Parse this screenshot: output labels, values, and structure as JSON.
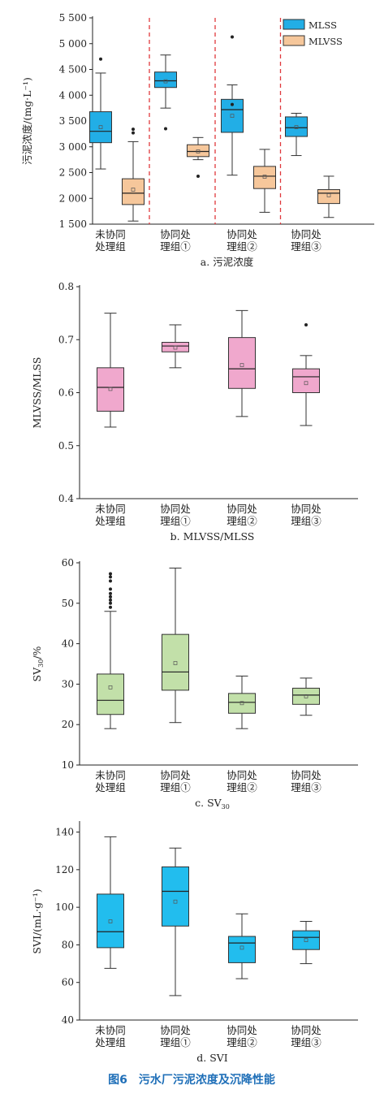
{
  "figure_caption": "图6　污水厂污泥浓度及沉降性能",
  "colors": {
    "mlss": "#22aee6",
    "mlvss": "#f6c79b",
    "ratio": "#f0a8cd",
    "sv30": "#c2e0a9",
    "svi": "#22bdee",
    "divider": "#e0383c",
    "caption": "#1f6fb8"
  },
  "chart_data": [
    {
      "type": "box",
      "id": "a",
      "subtitle": "a. 污泥浓度",
      "ylabel": "污泥浓度/(mg·L⁻¹)",
      "ylim": [
        1500,
        5500
      ],
      "yticks": [
        1500,
        2000,
        2500,
        3000,
        3500,
        4000,
        4500,
        5000,
        5500
      ],
      "ytick_labels": [
        "1 500",
        "2 000",
        "2 500",
        "3 000",
        "3 500",
        "4 000",
        "4 500",
        "5 000",
        "5 500"
      ],
      "categories": [
        [
          "未协同",
          "处理组"
        ],
        [
          "协同处",
          "理组①"
        ],
        [
          "协同处",
          "理组②"
        ],
        [
          "协同处",
          "理组③"
        ]
      ],
      "group_dividers": true,
      "legend_position": "top-right",
      "series": [
        {
          "name": "MLSS",
          "boxes": [
            {
              "min": 2570,
              "q1": 3080,
              "median": 3300,
              "q3": 3680,
              "max": 4430,
              "mean": 3380,
              "outliers": [
                4700
              ]
            },
            {
              "min": 3750,
              "q1": 4150,
              "median": 4280,
              "q3": 4450,
              "max": 4780,
              "mean": 4270,
              "outliers": [
                3350
              ]
            },
            {
              "min": 2450,
              "q1": 3280,
              "median": 3720,
              "q3": 3920,
              "max": 4200,
              "mean": 3600,
              "outliers": [
                5130,
                3820
              ]
            },
            {
              "min": 2830,
              "q1": 3200,
              "median": 3370,
              "q3": 3580,
              "max": 3650,
              "mean": 3380,
              "outliers": []
            }
          ]
        },
        {
          "name": "MLVSS",
          "boxes": [
            {
              "min": 1560,
              "q1": 1880,
              "median": 2100,
              "q3": 2380,
              "max": 3100,
              "mean": 2170,
              "outliers": [
                3270,
                3340
              ]
            },
            {
              "min": 2750,
              "q1": 2810,
              "median": 2910,
              "q3": 3040,
              "max": 3180,
              "mean": 2910,
              "outliers": [
                2430
              ]
            },
            {
              "min": 1730,
              "q1": 2190,
              "median": 2430,
              "q3": 2620,
              "max": 2950,
              "mean": 2420,
              "outliers": []
            },
            {
              "min": 1630,
              "q1": 1900,
              "median": 2100,
              "q3": 2170,
              "max": 2430,
              "mean": 2060,
              "outliers": []
            }
          ]
        }
      ]
    },
    {
      "type": "box",
      "id": "b",
      "subtitle": "b. MLVSS/MLSS",
      "ylabel": "MLVSS/MLSS",
      "ylim": [
        0.4,
        0.8
      ],
      "yticks": [
        0.4,
        0.5,
        0.6,
        0.7,
        0.8
      ],
      "ytick_labels": [
        "0.4",
        "0.5",
        "0.6",
        "0.7",
        "0.8"
      ],
      "categories": [
        [
          "未协同",
          "处理组"
        ],
        [
          "协同处",
          "理组①"
        ],
        [
          "协同处",
          "理组②"
        ],
        [
          "协同处",
          "理组③"
        ]
      ],
      "boxes": [
        {
          "min": 0.535,
          "q1": 0.565,
          "median": 0.61,
          "q3": 0.647,
          "max": 0.75,
          "mean": 0.607,
          "outliers": []
        },
        {
          "min": 0.647,
          "q1": 0.677,
          "median": 0.688,
          "q3": 0.695,
          "max": 0.728,
          "mean": 0.685,
          "outliers": []
        },
        {
          "min": 0.555,
          "q1": 0.608,
          "median": 0.645,
          "q3": 0.704,
          "max": 0.755,
          "mean": 0.652,
          "outliers": []
        },
        {
          "min": 0.538,
          "q1": 0.6,
          "median": 0.63,
          "q3": 0.645,
          "max": 0.67,
          "mean": 0.618,
          "outliers": [
            0.728
          ]
        }
      ]
    },
    {
      "type": "box",
      "id": "c",
      "subtitle": "c. SV",
      "subtitle_sub": "30",
      "ylabel": "SV",
      "ylabel_sub": "30",
      "ylabel_suffix": "/%",
      "ylim": [
        10,
        60
      ],
      "yticks": [
        10,
        20,
        30,
        40,
        50,
        60
      ],
      "ytick_labels": [
        "10",
        "20",
        "30",
        "40",
        "50",
        "60"
      ],
      "categories": [
        [
          "未协同",
          "处理组"
        ],
        [
          "协同处",
          "理组①"
        ],
        [
          "协同处",
          "理组②"
        ],
        [
          "协同处",
          "理组③"
        ]
      ],
      "boxes": [
        {
          "min": 19,
          "q1": 22.5,
          "median": 26,
          "q3": 32.5,
          "max": 48,
          "mean": 29.2,
          "outliers": [
            49,
            50,
            50.8,
            51.6,
            52.4,
            53.5,
            55.5,
            56.5,
            57.3
          ]
        },
        {
          "min": 20.5,
          "q1": 28.5,
          "median": 33,
          "q3": 42.3,
          "max": 58.7,
          "mean": 35.2,
          "outliers": []
        },
        {
          "min": 19,
          "q1": 22.8,
          "median": 25.5,
          "q3": 27.7,
          "max": 32,
          "mean": 25.3,
          "outliers": []
        },
        {
          "min": 22.3,
          "q1": 25,
          "median": 27.3,
          "q3": 29,
          "max": 31.5,
          "mean": 27,
          "outliers": []
        }
      ]
    },
    {
      "type": "box",
      "id": "d",
      "subtitle": "d. SVI",
      "ylabel": "SVI/(mL·g⁻¹)",
      "ylim": [
        40,
        145
      ],
      "yticks": [
        40,
        60,
        80,
        100,
        120,
        140
      ],
      "ytick_labels": [
        "40",
        "60",
        "80",
        "100",
        "120",
        "140"
      ],
      "categories": [
        [
          "未协同",
          "处理组"
        ],
        [
          "协同处",
          "理组①"
        ],
        [
          "协同处",
          "理组②"
        ],
        [
          "协同处",
          "理组③"
        ]
      ],
      "boxes": [
        {
          "min": 67.5,
          "q1": 78.5,
          "median": 87,
          "q3": 107,
          "max": 137.5,
          "mean": 92.5,
          "outliers": []
        },
        {
          "min": 53,
          "q1": 90,
          "median": 108.5,
          "q3": 121.5,
          "max": 131.5,
          "mean": 103,
          "outliers": []
        },
        {
          "min": 62,
          "q1": 70.5,
          "median": 81,
          "q3": 84.5,
          "max": 96.5,
          "mean": 78.5,
          "outliers": []
        },
        {
          "min": 70,
          "q1": 77.5,
          "median": 84,
          "q3": 87.5,
          "max": 92.5,
          "mean": 82.5,
          "outliers": []
        }
      ]
    }
  ]
}
